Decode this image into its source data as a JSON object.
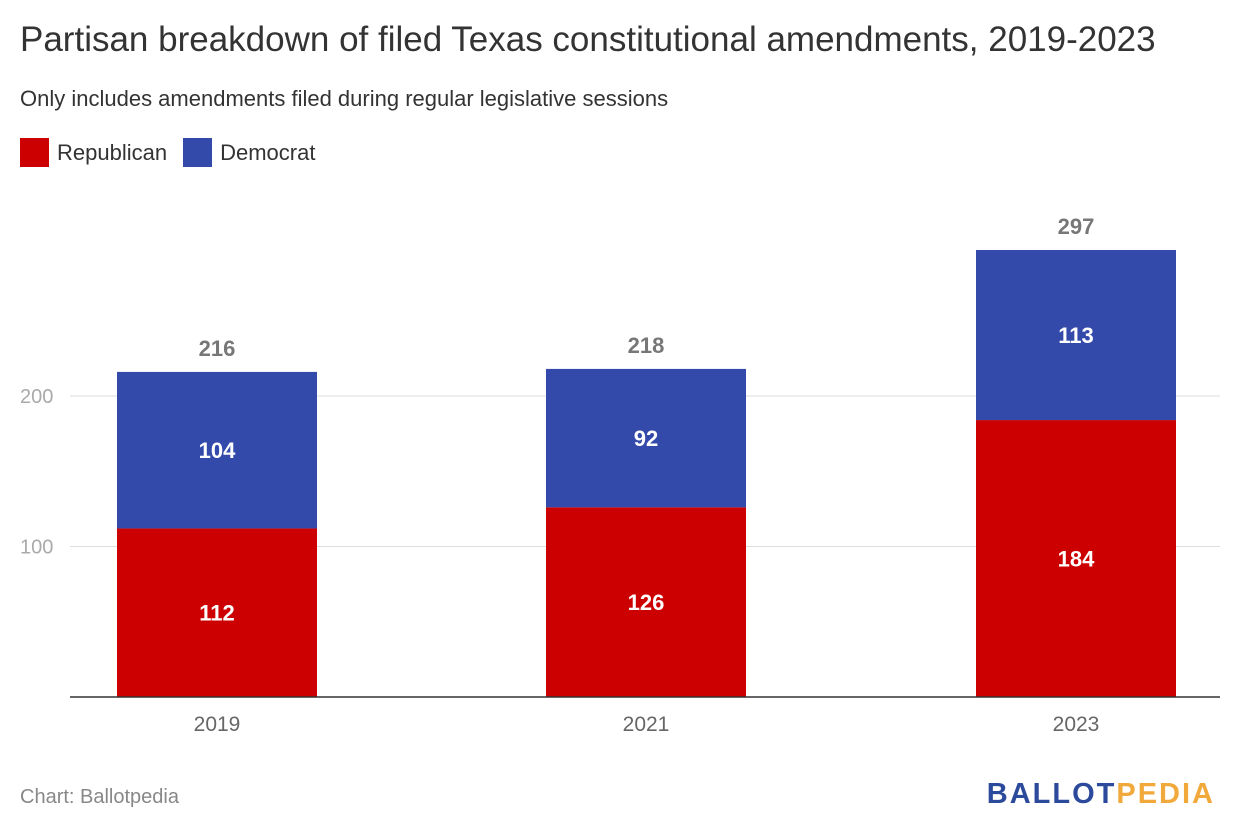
{
  "title": "Partisan breakdown of filed Texas constitutional amendments, 2019-2023",
  "subtitle": "Only includes amendments filed during regular legislative sessions",
  "source": "Chart: Ballotpedia",
  "logo": {
    "part1": "BALLOT",
    "part2": "PEDIA"
  },
  "colors": {
    "republican": "#cc0000",
    "democrat": "#344aab",
    "logo_blue": "#2c4a9b",
    "logo_gold": "#f2a93b"
  },
  "chart_data": {
    "type": "bar",
    "stacked": true,
    "categories": [
      "2019",
      "2021",
      "2023"
    ],
    "series": [
      {
        "name": "Republican",
        "values": [
          112,
          126,
          184
        ],
        "color": "#cc0000"
      },
      {
        "name": "Democrat",
        "values": [
          104,
          92,
          113
        ],
        "color": "#344aab"
      }
    ],
    "totals": [
      216,
      218,
      297
    ],
    "y_ticks": [
      100,
      200
    ],
    "ylim": [
      0,
      300
    ],
    "grid": true,
    "legend_position": "top-left"
  }
}
